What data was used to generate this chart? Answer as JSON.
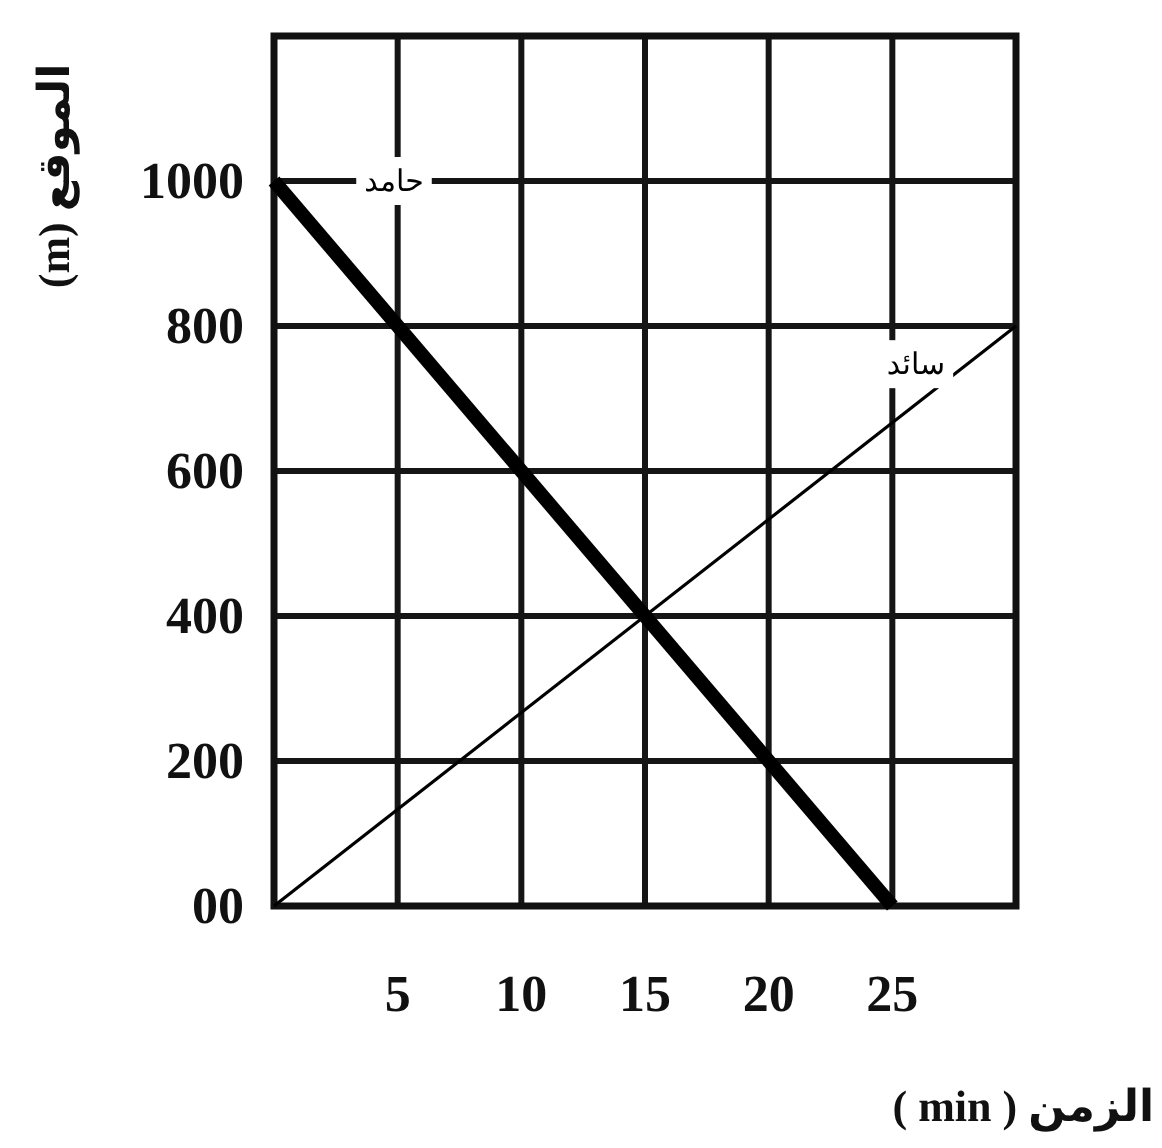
{
  "chart_data": {
    "type": "line",
    "xlabel": "الزمن ( min )",
    "ylabel": "الموقع (m)",
    "xlim": [
      0,
      30
    ],
    "ylim": [
      0,
      1200
    ],
    "xticks": [
      5,
      10,
      15,
      20,
      25
    ],
    "yticks": [
      {
        "value": 0,
        "label": "00"
      },
      200,
      400,
      600,
      800,
      1000
    ],
    "grid": true,
    "line_style": "solid",
    "series": [
      {
        "name": "حامد",
        "color": "#000000",
        "x": [
          0,
          25
        ],
        "values": [
          1000,
          0
        ]
      },
      {
        "name": "سائد",
        "color": "#000000",
        "x": [
          0,
          30
        ],
        "values": [
          0,
          800
        ]
      }
    ]
  }
}
